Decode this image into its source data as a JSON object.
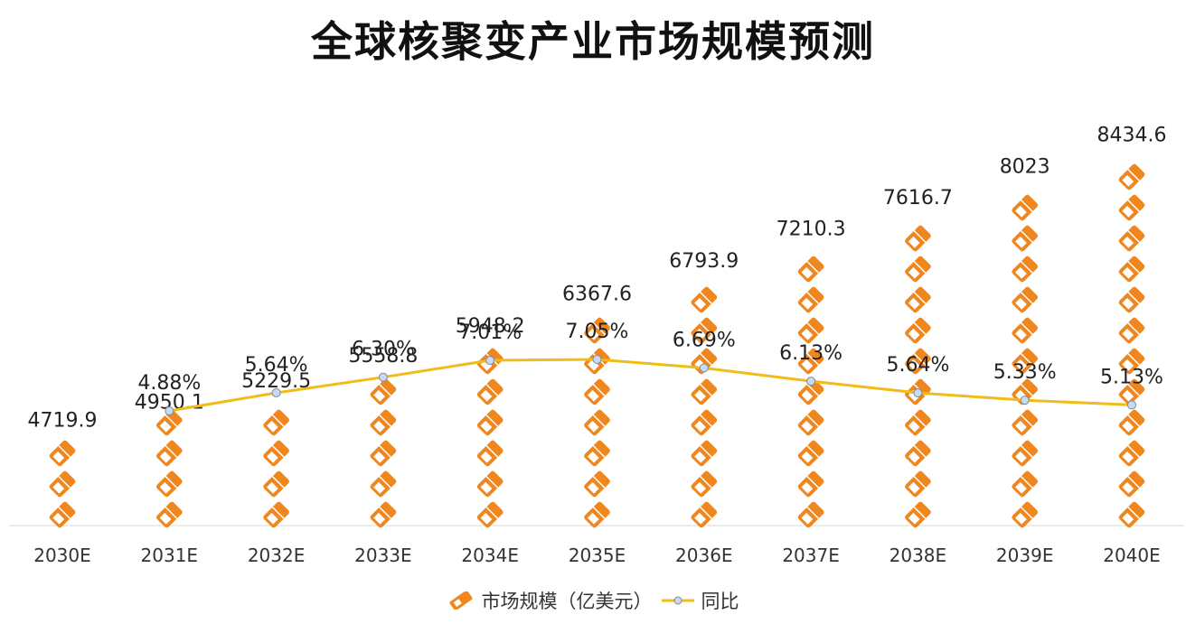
{
  "title": "全球核聚变产业市场规模预测",
  "colors": {
    "bar": "#f0861e",
    "line": "#f1bb18",
    "marker": "#c9d9ef"
  },
  "legend": {
    "bar_label": "市场规模（亿美元）",
    "line_label": "同比"
  },
  "chart_data": {
    "type": "bar",
    "title": "全球核聚变产业市场规模预测",
    "categories": [
      "2030E",
      "2031E",
      "2032E",
      "2033E",
      "2034E",
      "2035E",
      "2036E",
      "2037E",
      "2038E",
      "2039E",
      "2040E"
    ],
    "series": [
      {
        "name": "市场规模（亿美元）",
        "type": "bar",
        "values": [
          4719.9,
          4950.1,
          5229.5,
          5558.8,
          5948.2,
          6367.6,
          6793.9,
          7210.3,
          7616.7,
          8023,
          8434.6
        ],
        "labels": [
          "4719.9",
          "4950.1",
          "5229.5",
          "5558.8",
          "5948.2",
          "6367.6",
          "6793.9",
          "7210.3",
          "7616.7",
          "8023",
          "8434.6"
        ]
      },
      {
        "name": "同比",
        "type": "line",
        "values": [
          null,
          4.88,
          5.64,
          6.3,
          7.01,
          7.05,
          6.69,
          6.13,
          5.64,
          5.33,
          5.13
        ],
        "labels": [
          "",
          "4.88%",
          "5.64%",
          "6.30%",
          "7.01%",
          "7.05%",
          "6.69%",
          "6.13%",
          "5.64%",
          "5.33%",
          "5.13%"
        ]
      }
    ],
    "xlabel": "",
    "ylabel": "",
    "grid": false,
    "legend_position": "bottom"
  }
}
